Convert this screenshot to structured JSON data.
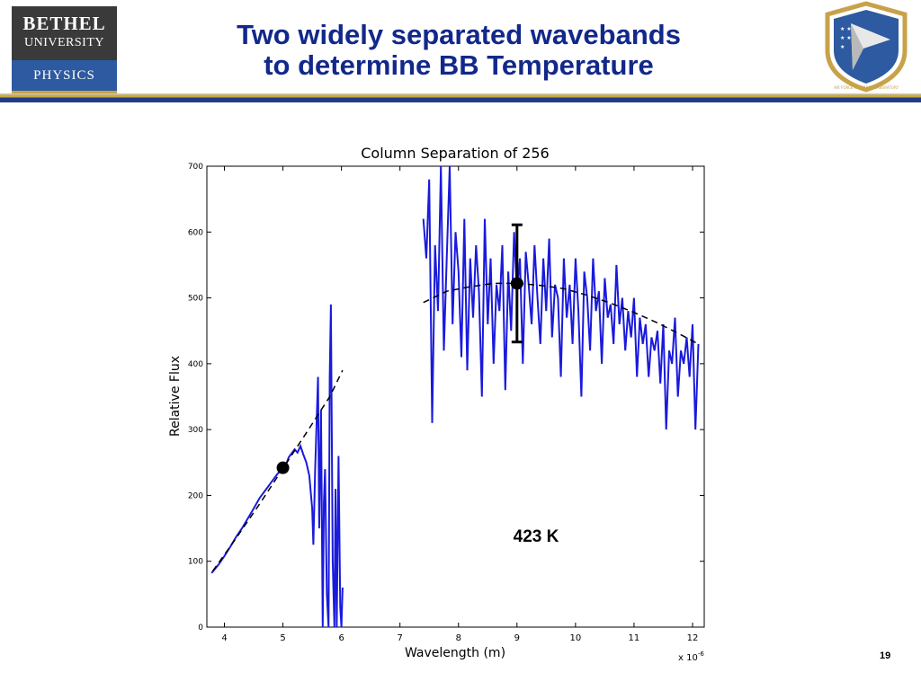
{
  "slide": {
    "title_line1": "Two widely separated wavebands",
    "title_line2": "to determine BB Temperature",
    "page_number": "19",
    "logo_left": {
      "line1": "BETHEL",
      "line2": "UNIVERSITY",
      "line3": "PHYSICS"
    },
    "logo_right_text": "AIR FORCE RESEARCH LABORATORY",
    "colors": {
      "title": "#12288a",
      "accent_gold": "#c8a93c",
      "accent_navy": "#1f3c86",
      "data_line": "#1a1adc"
    }
  },
  "chart_data": {
    "type": "line",
    "title": "Column Separation of 256",
    "xlabel": "Wavelength (m)",
    "ylabel": "Relative Flux",
    "x_exponent_label": "x 10",
    "x_exponent": "-6",
    "xlim": [
      3.7,
      12.2
    ],
    "ylim": [
      0,
      700
    ],
    "xticks": [
      4,
      5,
      6,
      7,
      8,
      9,
      10,
      11,
      12
    ],
    "yticks": [
      0,
      100,
      200,
      300,
      400,
      500,
      600,
      700
    ],
    "grid": false,
    "annotation": "423 K",
    "series": [
      {
        "kind": "measured",
        "color": "#1a1adc",
        "x": [
          3.78,
          3.9,
          4.0,
          4.1,
          4.2,
          4.3,
          4.4,
          4.5,
          4.6,
          4.7,
          4.8,
          4.9,
          5.0,
          5.05,
          5.1,
          5.2,
          5.25,
          5.3,
          5.35,
          5.4,
          5.45,
          5.5,
          5.52,
          5.55,
          5.6,
          5.62,
          5.65,
          5.68,
          5.7,
          5.72,
          5.75,
          5.78,
          5.8,
          5.82,
          5.85,
          5.88,
          5.9,
          5.92,
          5.95,
          5.98,
          6.0,
          6.02
        ],
        "y": [
          82,
          95,
          108,
          122,
          137,
          150,
          165,
          180,
          196,
          208,
          220,
          232,
          242,
          246,
          258,
          270,
          265,
          275,
          262,
          250,
          230,
          180,
          125,
          240,
          380,
          150,
          330,
          0,
          190,
          240,
          50,
          0,
          380,
          490,
          100,
          0,
          210,
          0,
          260,
          30,
          0,
          60
        ]
      },
      {
        "kind": "measured",
        "color": "#1a1adc",
        "x": [
          7.4,
          7.45,
          7.5,
          7.55,
          7.6,
          7.65,
          7.7,
          7.75,
          7.8,
          7.85,
          7.9,
          7.95,
          8.0,
          8.05,
          8.1,
          8.15,
          8.2,
          8.25,
          8.3,
          8.35,
          8.4,
          8.45,
          8.5,
          8.55,
          8.6,
          8.65,
          8.7,
          8.75,
          8.8,
          8.85,
          8.9,
          8.95,
          9.0,
          9.05,
          9.1,
          9.15,
          9.2,
          9.25,
          9.3,
          9.35,
          9.4,
          9.45,
          9.5,
          9.55,
          9.6,
          9.65,
          9.7,
          9.75,
          9.8,
          9.85,
          9.9,
          9.95,
          10.0,
          10.05,
          10.1,
          10.15,
          10.2,
          10.25,
          10.3,
          10.35,
          10.4,
          10.45,
          10.5,
          10.55,
          10.6,
          10.65,
          10.7,
          10.75,
          10.8,
          10.85,
          10.9,
          10.95,
          11.0,
          11.05,
          11.1,
          11.15,
          11.2,
          11.25,
          11.3,
          11.35,
          11.4,
          11.45,
          11.5,
          11.55,
          11.6,
          11.65,
          11.7,
          11.75,
          11.8,
          11.85,
          11.9,
          11.95,
          12.0,
          12.05,
          12.1
        ],
        "y": [
          620,
          560,
          680,
          310,
          580,
          480,
          700,
          420,
          560,
          700,
          460,
          600,
          540,
          410,
          620,
          390,
          560,
          470,
          580,
          510,
          350,
          620,
          460,
          560,
          400,
          520,
          480,
          580,
          360,
          540,
          450,
          600,
          510,
          560,
          400,
          570,
          520,
          460,
          580,
          500,
          430,
          560,
          480,
          590,
          440,
          520,
          500,
          380,
          560,
          470,
          520,
          430,
          560,
          480,
          350,
          540,
          500,
          420,
          560,
          480,
          510,
          400,
          530,
          470,
          490,
          430,
          550,
          460,
          500,
          420,
          480,
          440,
          500,
          380,
          470,
          430,
          460,
          380,
          440,
          420,
          450,
          370,
          460,
          300,
          420,
          400,
          470,
          350,
          420,
          400,
          440,
          380,
          460,
          300,
          430
        ]
      },
      {
        "kind": "blackbody_fit",
        "style": "dashed",
        "color": "#000000",
        "x": [
          3.8,
          4.2,
          4.6,
          5.0,
          5.4,
          5.8,
          6.02
        ],
        "y": [
          85,
          135,
          187,
          241,
          295,
          350,
          390
        ]
      },
      {
        "kind": "blackbody_fit",
        "style": "dashed",
        "color": "#000000",
        "x": [
          7.4,
          7.8,
          8.2,
          8.6,
          9.0,
          9.4,
          9.8,
          10.2,
          10.6,
          11.0,
          11.4,
          11.8,
          12.1
        ],
        "y": [
          493,
          510,
          517,
          522,
          522,
          519,
          514,
          504,
          492,
          478,
          462,
          444,
          430
        ]
      }
    ],
    "markers": [
      {
        "x": 5.0,
        "y": 242
      },
      {
        "x": 9.0,
        "y": 522
      }
    ],
    "errorbar": {
      "x": 9.0,
      "low": 433,
      "high": 611
    }
  }
}
